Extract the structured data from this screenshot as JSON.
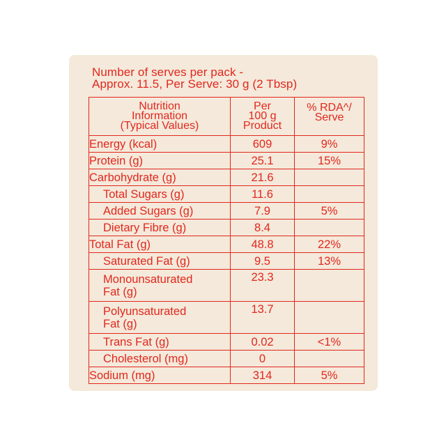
{
  "serves_line1": "Number of serves per pack -",
  "serves_line2": "Approx. 11.5, Per Serve: 30 g (2 Tbsp)",
  "headers": {
    "col1": [
      "Nutrition",
      "Information",
      "(Typical Values)"
    ],
    "col2": [
      "Per",
      "100 g",
      "Product"
    ],
    "col3": [
      "% RDA^/",
      "Serve"
    ]
  },
  "rows": [
    {
      "label": "Energy (kcal)",
      "per100": "609",
      "rda": "9%"
    },
    {
      "label": "Protein (g)",
      "per100": "25.1",
      "rda": "15%"
    },
    {
      "label": "Carbohydrate (g)",
      "per100": "21.6",
      "rda": ""
    },
    {
      "label": "Total Sugars (g)",
      "per100": "11.6",
      "rda": ""
    },
    {
      "label": "Added Sugars (g)",
      "per100": "7.9",
      "rda": "5%"
    },
    {
      "label": "Dietary Fibre (g)",
      "per100": "8.4",
      "rda": ""
    },
    {
      "label": "Total Fat (g)",
      "per100": "48.8",
      "rda": "22%"
    },
    {
      "label": "Saturated Fat (g)",
      "per100": "9.5",
      "rda": "13%"
    },
    {
      "label_line1": "Monounsaturated",
      "label_line2": "Fat (g)",
      "per100": "23.3",
      "rda": ""
    },
    {
      "label_line1": "Polyunsaturated",
      "label_line2": "Fat (g)",
      "per100": "13.7",
      "rda": ""
    },
    {
      "label": "Trans Fat (g)",
      "per100": "0.02",
      "rda": "<1%"
    },
    {
      "label": "Cholesterol (mg)",
      "per100": "0",
      "rda": ""
    },
    {
      "label": "Sodium (mg)",
      "per100": "314",
      "rda": "5%"
    }
  ]
}
